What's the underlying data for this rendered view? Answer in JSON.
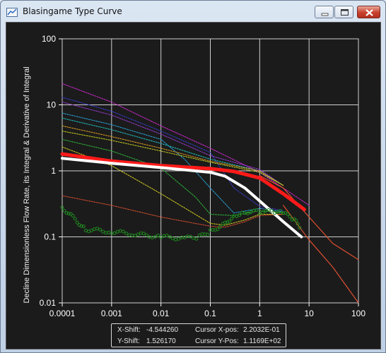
{
  "window": {
    "title": "Blasingame Type Curve",
    "icon": "app-chart-icon",
    "buttons": [
      "minimize-icon",
      "maximize-icon",
      "close-icon"
    ]
  },
  "readout": {
    "xshift_label": "X-Shift:",
    "xshift_value": "-4.544260",
    "yshift_label": "Y-Shift:",
    "yshift_value": "1.526170",
    "cursor_x_label": "Cursor X-pos:",
    "cursor_x_value": "2.2032E-01",
    "cursor_y_label": "Cursor Y-Pos:",
    "cursor_y_value": "1.1169E+02"
  },
  "chart_data": {
    "type": "line",
    "title": "",
    "ylabel": "Decline Dimensionless Flow Rate, its Integral & Derivative of Integral",
    "xlabel": "",
    "x_scale": "log",
    "y_scale": "log",
    "xlim": [
      0.0001,
      100
    ],
    "ylim": [
      0.01,
      100
    ],
    "x_ticks": [
      "0.0001",
      "0.001",
      "0.01",
      "0.1",
      "1",
      "10",
      "100"
    ],
    "y_ticks": [
      "0.01",
      "0.1",
      "1",
      "10",
      "100"
    ],
    "grid": true,
    "background": "#1b1b1b",
    "series": [
      {
        "color": "#d829d8",
        "style": "dotted",
        "x": [
          0.0001,
          0.001,
          0.01,
          0.1,
          1,
          3,
          10
        ],
        "y": [
          21,
          11,
          4.8,
          2.2,
          0.95,
          0.55,
          0.3
        ]
      },
      {
        "color": "#3a3ad0",
        "style": "dotted",
        "x": [
          0.0001,
          0.001,
          0.01,
          0.1,
          0.3,
          1,
          3
        ],
        "y": [
          13,
          8,
          4.0,
          1.9,
          0.55,
          0.29,
          0.25
        ]
      },
      {
        "color": "#9a3ad8",
        "style": "dotted",
        "x": [
          0.0001,
          0.001,
          0.01,
          0.1,
          1,
          3
        ],
        "y": [
          11,
          7,
          3.6,
          1.7,
          1.05,
          0.6
        ]
      },
      {
        "color": "#26a8e0",
        "style": "dotted",
        "x": [
          0.0001,
          0.001,
          0.01,
          0.03,
          0.1,
          0.3,
          1,
          3
        ],
        "y": [
          7.5,
          5,
          3.0,
          1.5,
          0.55,
          0.23,
          0.27,
          0.24
        ]
      },
      {
        "color": "#22c0c0",
        "style": "dotted",
        "x": [
          0.0001,
          0.001,
          0.01,
          0.1,
          1,
          3
        ],
        "y": [
          6.3,
          4.2,
          2.6,
          1.5,
          1.0,
          0.6
        ]
      },
      {
        "color": "#e0a020",
        "style": "dotted",
        "x": [
          0.0001,
          0.001,
          0.01,
          0.1,
          1,
          3
        ],
        "y": [
          4.8,
          3.3,
          2.2,
          1.4,
          1.0,
          0.6
        ]
      },
      {
        "color": "#c8d21e",
        "style": "dotted",
        "x": [
          0.0001,
          0.001,
          0.01,
          0.1,
          1,
          3
        ],
        "y": [
          4.0,
          2.9,
          2.0,
          1.35,
          0.95,
          0.6
        ]
      },
      {
        "color": "#2eb83a",
        "style": "dotted",
        "x": [
          0.0001,
          0.001,
          0.01,
          0.05,
          0.1,
          0.3,
          1,
          3
        ],
        "y": [
          3.0,
          2.0,
          1.1,
          0.4,
          0.22,
          0.21,
          0.25,
          0.23
        ]
      },
      {
        "color": "#d8d020",
        "style": "dotted",
        "x": [
          0.0001,
          0.001,
          0.01,
          0.1,
          0.2,
          0.5,
          1,
          3
        ],
        "y": [
          2.3,
          1.2,
          0.45,
          0.16,
          0.15,
          0.18,
          0.22,
          0.22
        ]
      },
      {
        "color": "#e05030",
        "style": "dotted",
        "x": [
          0.0001,
          0.001,
          0.01,
          0.1,
          0.2,
          0.5,
          1,
          3
        ],
        "y": [
          0.42,
          0.3,
          0.2,
          0.145,
          0.14,
          0.17,
          0.21,
          0.22
        ]
      },
      {
        "color": "#e05030",
        "style": "solid",
        "x": [
          1,
          3,
          10,
          30,
          100
        ],
        "y": [
          0.85,
          0.55,
          0.2,
          0.08,
          0.045
        ]
      },
      {
        "color": "#e05030",
        "style": "solid",
        "x": [
          3,
          10,
          30,
          100
        ],
        "y": [
          0.3,
          0.09,
          0.035,
          0.01
        ]
      },
      {
        "color": "#ff1a1a",
        "style": "thick",
        "x": [
          0.0001,
          0.001,
          0.01,
          0.1,
          0.3,
          1,
          3,
          8
        ],
        "y": [
          1.8,
          1.4,
          1.2,
          1.08,
          0.98,
          0.78,
          0.45,
          0.26
        ]
      },
      {
        "color": "#ffffff",
        "style": "thick",
        "x": [
          0.0001,
          0.001,
          0.01,
          0.1,
          0.2,
          0.5,
          1,
          3,
          7
        ],
        "y": [
          1.55,
          1.3,
          1.12,
          0.95,
          0.83,
          0.55,
          0.35,
          0.17,
          0.1
        ]
      },
      {
        "color": "#1f8a1f",
        "style": "markers",
        "x": [
          0.0001,
          0.0003,
          0.001,
          0.003,
          0.01,
          0.03,
          0.06,
          0.1,
          0.2,
          0.3,
          0.5,
          1,
          2,
          3,
          5,
          7
        ],
        "y": [
          0.28,
          0.13,
          0.12,
          0.11,
          0.1,
          0.095,
          0.1,
          0.12,
          0.16,
          0.21,
          0.24,
          0.24,
          0.24,
          0.23,
          0.18,
          0.13
        ]
      }
    ]
  }
}
